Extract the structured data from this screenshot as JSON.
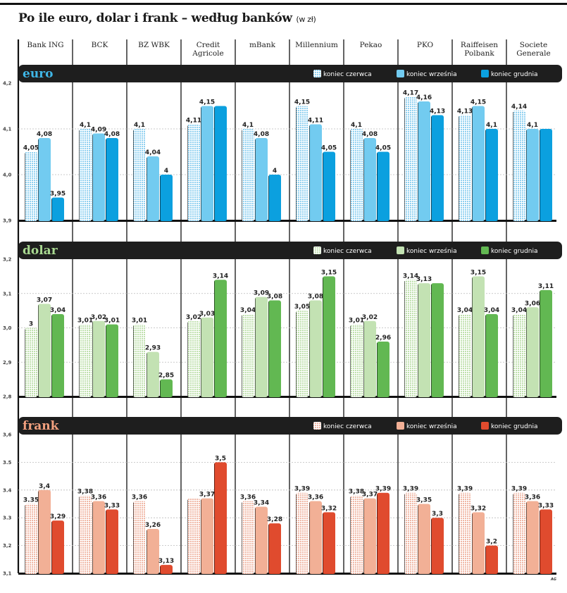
{
  "chart_data": {
    "type": "bar",
    "title": "Po ile euro, dolar i frank – według banków",
    "title_unit": "(w zł)",
    "categories": [
      "Bank ING",
      "BCK",
      "BZ WBK",
      "Credit Agricole",
      "mBank",
      "Millennium",
      "Pekao",
      "PKO",
      "Raiffeisen Polbank",
      "Societe Generale"
    ],
    "category_lines": [
      [
        "Bank ING"
      ],
      [
        "BCK"
      ],
      [
        "BZ WBK"
      ],
      [
        "Credit",
        "Agricole"
      ],
      [
        "mBank"
      ],
      [
        "Millennium"
      ],
      [
        "Pekao"
      ],
      [
        "PKO"
      ],
      [
        "Raiffeisen",
        "Polbank"
      ],
      [
        "Societe",
        "Generale"
      ]
    ],
    "legend": [
      "koniec czerwca",
      "koniec września",
      "koniec grudnia"
    ],
    "legend_placement": "top-right of each panel",
    "credit": "AG",
    "panels": [
      {
        "name": "euro",
        "colors": {
          "title": "#3fb6e6",
          "pattern": "#8fd0f0",
          "series2": "#72cbf0",
          "series3": "#0ba0df"
        },
        "ylim": [
          3.9,
          4.2
        ],
        "yticks": [
          "4,2",
          "4,1",
          "4,0",
          "3,9"
        ],
        "ytick_values": [
          4.2,
          4.1,
          4.0,
          3.9
        ],
        "series": [
          {
            "name": "koniec czerwca",
            "values": [
              4.05,
              4.1,
              4.1,
              4.11,
              4.1,
              4.15,
              4.1,
              4.17,
              4.13,
              4.14
            ]
          },
          {
            "name": "koniec września",
            "values": [
              4.08,
              4.09,
              4.04,
              4.15,
              4.08,
              4.11,
              4.08,
              4.16,
              4.15,
              4.1
            ]
          },
          {
            "name": "koniec grudnia",
            "values": [
              3.95,
              4.08,
              4.0,
              4.15,
              4.0,
              4.05,
              4.05,
              4.13,
              4.1,
              4.1
            ]
          }
        ],
        "labels": [
          [
            "4,05",
            "4,08",
            "3,95"
          ],
          [
            "4,1",
            "4,09",
            "4,08"
          ],
          [
            "4,1",
            "4,04",
            "4"
          ],
          [
            "4,11",
            "4,15",
            ""
          ],
          [
            "4,1",
            "4,08",
            "4"
          ],
          [
            "4,15",
            "4,11",
            "4,05"
          ],
          [
            "4,1",
            "4,08",
            "4,05"
          ],
          [
            "4,17",
            "4,16",
            "4,13"
          ],
          [
            "4,13",
            "4,15",
            "4,1"
          ],
          [
            "4,14",
            "4,1",
            ""
          ]
        ]
      },
      {
        "name": "dolar",
        "colors": {
          "title": "#a8d890",
          "pattern": "#bfe0ad",
          "series2": "#c3e2b3",
          "series3": "#62b852"
        },
        "ylim": [
          2.8,
          3.2
        ],
        "yticks": [
          "3,2",
          "3,1",
          "3,0",
          "2,9",
          "2,8"
        ],
        "ytick_values": [
          3.2,
          3.1,
          3.0,
          2.9,
          2.8
        ],
        "series": [
          {
            "name": "koniec czerwca",
            "values": [
              3.0,
              3.01,
              3.01,
              3.02,
              3.04,
              3.05,
              3.01,
              3.14,
              3.04,
              3.04
            ]
          },
          {
            "name": "koniec września",
            "values": [
              3.07,
              3.02,
              2.93,
              3.03,
              3.09,
              3.08,
              3.02,
              3.13,
              3.15,
              3.06
            ]
          },
          {
            "name": "koniec grudnia",
            "values": [
              3.04,
              3.01,
              2.85,
              3.14,
              3.08,
              3.15,
              2.96,
              3.13,
              3.04,
              3.11
            ]
          }
        ],
        "labels": [
          [
            "3",
            "3,07",
            "3,04"
          ],
          [
            "3,01",
            "3,02",
            "3,01"
          ],
          [
            "3,01",
            "2,93",
            "2,85"
          ],
          [
            "3,02",
            "3,03",
            "3,14"
          ],
          [
            "3,04",
            "3,09",
            "3,08"
          ],
          [
            "3,05",
            "3,08",
            "3,15"
          ],
          [
            "3,01",
            "3,02",
            "2,96"
          ],
          [
            "3,14",
            "3,13",
            ""
          ],
          [
            "3,04",
            "3,15",
            "3,04"
          ],
          [
            "3,04",
            "3,06",
            "3,11"
          ]
        ]
      },
      {
        "name": "frank",
        "colors": {
          "title": "#f2a07e",
          "pattern": "#f0b7a5",
          "series2": "#f2b096",
          "series3": "#e04b2e"
        },
        "ylim": [
          3.1,
          3.6
        ],
        "yticks": [
          "3,6",
          "3.5",
          "3.4",
          "3.3",
          "3,2",
          "3,1"
        ],
        "ytick_values": [
          3.6,
          3.5,
          3.4,
          3.3,
          3.2,
          3.1
        ],
        "series": [
          {
            "name": "koniec czerwca",
            "values": [
              3.35,
              3.38,
              3.36,
              3.37,
              3.36,
              3.39,
              3.38,
              3.39,
              3.39,
              3.39
            ]
          },
          {
            "name": "koniec września",
            "values": [
              3.4,
              3.36,
              3.26,
              3.37,
              3.34,
              3.36,
              3.37,
              3.35,
              3.32,
              3.36
            ]
          },
          {
            "name": "koniec grudnia",
            "values": [
              3.29,
              3.33,
              3.13,
              3.5,
              3.28,
              3.32,
              3.39,
              3.3,
              3.2,
              3.33
            ]
          }
        ],
        "labels": [
          [
            "3.35",
            "3,4",
            "3,29"
          ],
          [
            "3,38",
            "3,36",
            "3,33"
          ],
          [
            "3,36",
            "3,26",
            "3,13"
          ],
          [
            "",
            "3,37",
            "3,5"
          ],
          [
            "3,36",
            "3,34",
            "3,28"
          ],
          [
            "3,39",
            "3,36",
            "3,32"
          ],
          [
            "3,38",
            "3,37",
            "3,39"
          ],
          [
            "3,39",
            "3,35",
            "3,3"
          ],
          [
            "3,39",
            "3,32",
            "3,2"
          ],
          [
            "3,39",
            "3,36",
            "3,33"
          ]
        ]
      }
    ]
  }
}
